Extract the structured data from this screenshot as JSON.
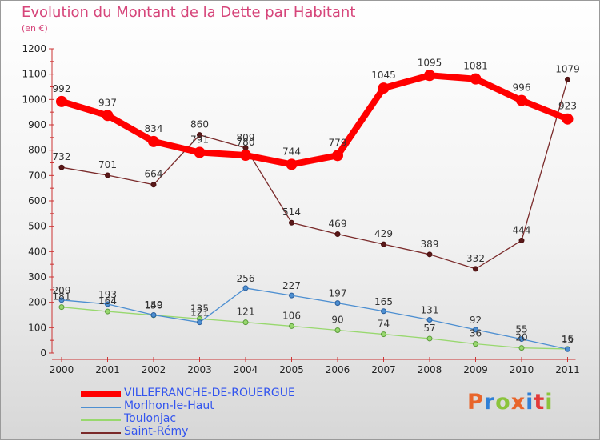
{
  "title": "Evolution du Montant de la Dette par Habitant",
  "subtitle": "(en €)",
  "logo": "Proxiti",
  "chart_data": {
    "type": "line",
    "title": "Evolution du Montant de la Dette par Habitant",
    "subtitle": "(en €)",
    "x": [
      "2000",
      "2001",
      "2002",
      "2003",
      "2004",
      "2005",
      "2006",
      "2007",
      "2008",
      "2009",
      "2010",
      "2011"
    ],
    "yticks": [
      0,
      100,
      200,
      300,
      400,
      500,
      600,
      700,
      800,
      900,
      1000,
      1100,
      1200
    ],
    "ylim": [
      0,
      1200
    ],
    "grid": false,
    "legend": "bottom-left",
    "series": [
      {
        "name": "VILLEFRANCHE-DE-ROUERGUE",
        "color": "#ff0000",
        "values": [
          992,
          937,
          834,
          791,
          780,
          744,
          779,
          1045,
          1095,
          1081,
          996,
          923
        ]
      },
      {
        "name": "Morlhon-le-Haut",
        "color": "#4d8fd1",
        "values": [
          209,
          193,
          150,
          121,
          256,
          227,
          197,
          165,
          131,
          92,
          55,
          15
        ]
      },
      {
        "name": "Toulonjac",
        "color": "#98d86e",
        "values": [
          181,
          164,
          149,
          135,
          121,
          106,
          90,
          74,
          57,
          36,
          20,
          16
        ]
      },
      {
        "name": "Saint-Rémy",
        "color": "#7a2a2a",
        "values": [
          732,
          701,
          664,
          860,
          809,
          514,
          469,
          429,
          389,
          332,
          444,
          1079
        ]
      }
    ]
  }
}
